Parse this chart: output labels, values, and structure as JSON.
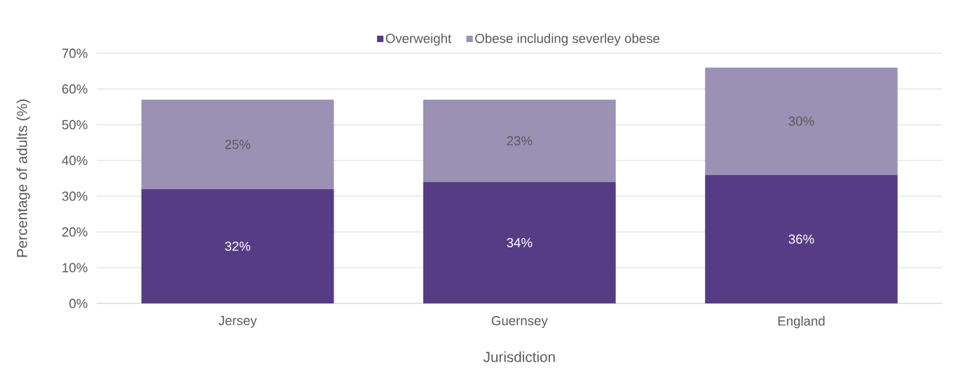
{
  "chart_data": {
    "type": "bar",
    "stacked": true,
    "xlabel": "Jurisdiction",
    "ylabel": "Percentage of adults (%)",
    "categories": [
      "Jersey",
      "Guernsey",
      "England"
    ],
    "series": [
      {
        "name": "Overweight",
        "color": "#553c85",
        "values": [
          32,
          34,
          36
        ],
        "value_labels": [
          "32%",
          "34%",
          "36%"
        ]
      },
      {
        "name": "Obese including severley obese",
        "color": "#9a91b5",
        "values": [
          25,
          23,
          30
        ],
        "value_labels": [
          "25%",
          "23%",
          "30%"
        ]
      }
    ],
    "ylim": [
      0,
      70
    ],
    "yticks": [
      {
        "value": 0,
        "label": "0%"
      },
      {
        "value": 10,
        "label": "10%"
      },
      {
        "value": 20,
        "label": "20%"
      },
      {
        "value": 30,
        "label": "30%"
      },
      {
        "value": 40,
        "label": "40%"
      },
      {
        "value": 50,
        "label": "50%"
      },
      {
        "value": 60,
        "label": "60%"
      },
      {
        "value": 70,
        "label": "70%"
      }
    ],
    "grid": "y",
    "legend": "top"
  }
}
